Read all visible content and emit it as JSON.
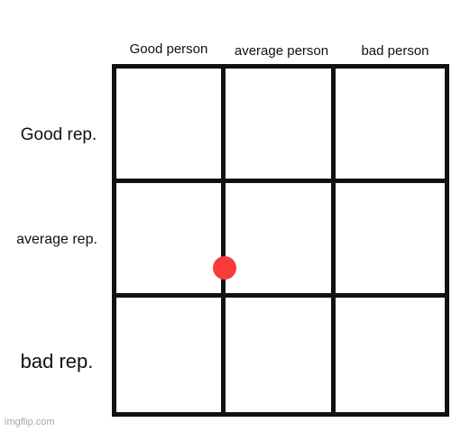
{
  "columns": {
    "good": "Good person",
    "average": "average person",
    "bad": "bad person"
  },
  "rows": {
    "good": "Good rep.",
    "average": "average rep.",
    "bad": "bad rep."
  },
  "marker": {
    "color": "#f93a3a",
    "column": "boundary between Good person and average person",
    "row": "average rep."
  },
  "watermark": "imgflip.com",
  "colors": {
    "grid_lines": "#111111",
    "background": "#ffffff"
  }
}
